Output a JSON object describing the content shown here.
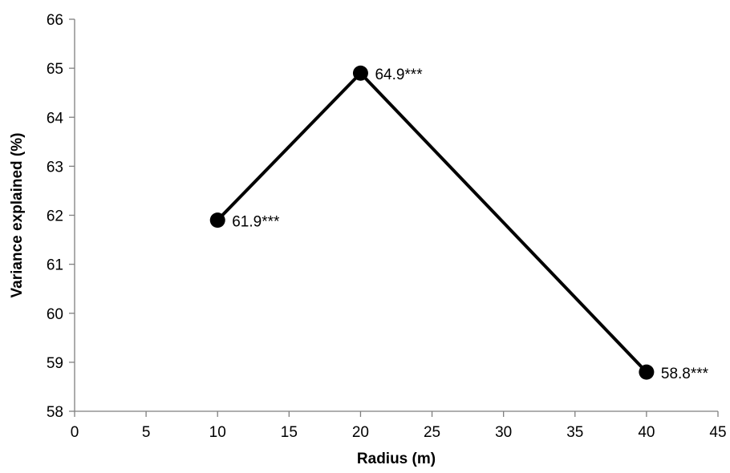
{
  "chart_data": {
    "type": "line",
    "title": "",
    "xlabel": "Radius (m)",
    "ylabel": "Variance explained (%)",
    "xlim": [
      0,
      45
    ],
    "ylim": [
      58,
      66
    ],
    "xticks": [
      0,
      5,
      10,
      15,
      20,
      25,
      30,
      35,
      40,
      45
    ],
    "yticks": [
      58,
      59,
      60,
      61,
      62,
      63,
      64,
      65,
      66
    ],
    "grid": false,
    "legend": "none",
    "series": [
      {
        "x": [
          10,
          20,
          40
        ],
        "y": [
          61.9,
          64.9,
          58.8
        ],
        "labels": [
          "61.9***",
          "64.9***",
          "58.8***"
        ],
        "color": "#000000",
        "marker": "circle"
      }
    ]
  }
}
